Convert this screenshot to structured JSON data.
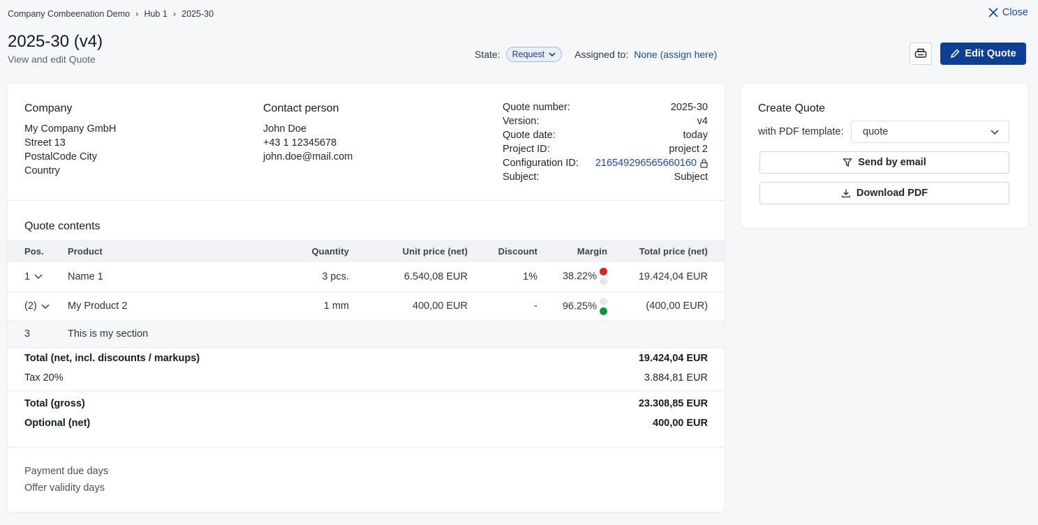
{
  "breadcrumb": [
    "Company Combeenation Demo",
    "Hub 1",
    "2025-30"
  ],
  "close_label": "Close",
  "header": {
    "title": "2025-30 (v4)",
    "subtitle": "View and edit Quote",
    "state_label": "State:",
    "state_value": "Request",
    "assigned_label": "Assigned to:",
    "assigned_value": "None (assign here)",
    "edit_label": "Edit Quote"
  },
  "company": {
    "heading": "Company",
    "lines": [
      "My Company GmbH",
      "Street 13",
      "PostalCode City",
      "Country"
    ]
  },
  "contact": {
    "heading": "Contact person",
    "lines": [
      "John Doe",
      "+43 1 12345678",
      "john.doe@mail.com"
    ]
  },
  "meta": {
    "quote_number_label": "Quote number:",
    "quote_number": "2025-30",
    "version_label": "Version:",
    "version": "v4",
    "date_label": "Quote date:",
    "date": "today",
    "project_label": "Project ID:",
    "project": "project 2",
    "config_label": "Configuration ID:",
    "config": "216549296565660160",
    "subject_label": "Subject:",
    "subject": "Subject"
  },
  "contents": {
    "heading": "Quote contents",
    "columns": [
      "Pos.",
      "Product",
      "Quantity",
      "Unit price (net)",
      "Discount",
      "Margin",
      "Total price (net)"
    ],
    "rows": [
      {
        "pos": "1",
        "product": "Name 1",
        "qty": "3 pcs.",
        "unit": "6.540,08 EUR",
        "discount": "1%",
        "margin": "38.22%",
        "total": "19.424,04 EUR",
        "top_dot": "#d42a1f",
        "bottom_dot": "#e6e8ec"
      },
      {
        "pos": "(2)",
        "product": "My Product 2",
        "qty": "1 mm",
        "unit": "400,00 EUR",
        "discount": "-",
        "margin": "96.25%",
        "total": "(400,00 EUR)",
        "top_dot": "#e6e8ec",
        "bottom_dot": "#14914a"
      }
    ],
    "section": {
      "pos": "3",
      "label": "This is my section"
    }
  },
  "totals": {
    "net_label": "Total (net, incl. discounts / markups)",
    "net": "19.424,04 EUR",
    "tax_label": "Tax 20%",
    "tax": "3.884,81 EUR",
    "gross_label": "Total (gross)",
    "gross": "23.308,85 EUR",
    "optional_label": "Optional (net)",
    "optional": "400,00 EUR"
  },
  "footer": {
    "payment": "Payment due days",
    "validity": "Offer validity days"
  },
  "create": {
    "heading": "Create Quote",
    "template_label": "with PDF template:",
    "template_value": "quote",
    "email_label": "Send by email",
    "download_label": "Download PDF"
  }
}
